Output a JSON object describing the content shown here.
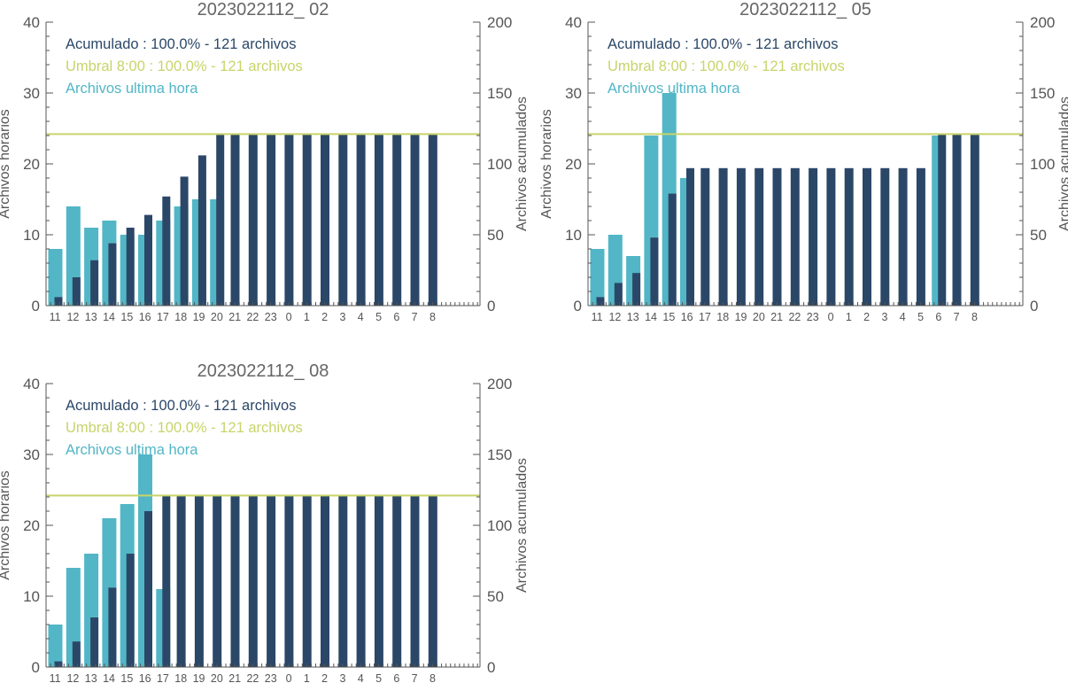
{
  "colors": {
    "axis": "#555555",
    "tick_text": "#555555",
    "title": "#666666",
    "hourly": "#52b6c6",
    "cumulative": "#2b4768",
    "threshold": "#c8d46a"
  },
  "chart_data": [
    {
      "type": "bar",
      "title": "2023022112_ 02",
      "xlabel": "",
      "ylabel": "Archivos horarios",
      "ylabel_right": "Archivos acumulados",
      "ylim": [
        0,
        40
      ],
      "ylim_right": [
        0,
        200
      ],
      "yticks": [
        0,
        10,
        20,
        30,
        40
      ],
      "yticks_right": [
        0,
        50,
        100,
        150,
        200
      ],
      "categories": [
        "11",
        "12",
        "13",
        "14",
        "15",
        "16",
        "17",
        "18",
        "19",
        "20",
        "21",
        "22",
        "23",
        "0",
        "1",
        "2",
        "3",
        "4",
        "5",
        "6",
        "7",
        "8"
      ],
      "grid": false,
      "legend_position": "top-left",
      "legend": [
        "Acumulado : 100.0% - 121 archivos",
        "Umbral 8:00 : 100.0% - 121 archivos",
        "Archivos ultima hora"
      ],
      "threshold": 121,
      "series": [
        {
          "name": "Archivos ultima hora",
          "axis": "left",
          "values": [
            8,
            14,
            11,
            12,
            10,
            10,
            12,
            14,
            15,
            15,
            0,
            0,
            0,
            0,
            0,
            0,
            0,
            0,
            0,
            0,
            0,
            0
          ]
        },
        {
          "name": "Acumulado",
          "axis": "right",
          "values": [
            6,
            20,
            32,
            44,
            55,
            64,
            77,
            91,
            106,
            121,
            121,
            121,
            121,
            121,
            121,
            121,
            121,
            121,
            121,
            121,
            121,
            121
          ]
        }
      ]
    },
    {
      "type": "bar",
      "title": "2023022112_ 05",
      "xlabel": "",
      "ylabel": "Archivos horarios",
      "ylabel_right": "Archivos acumulados",
      "ylim": [
        0,
        40
      ],
      "ylim_right": [
        0,
        200
      ],
      "yticks": [
        0,
        10,
        20,
        30,
        40
      ],
      "yticks_right": [
        0,
        50,
        100,
        150,
        200
      ],
      "categories": [
        "11",
        "12",
        "13",
        "14",
        "15",
        "16",
        "17",
        "18",
        "19",
        "20",
        "21",
        "22",
        "23",
        "0",
        "1",
        "2",
        "3",
        "4",
        "5",
        "6",
        "7",
        "8"
      ],
      "grid": false,
      "legend_position": "top-left",
      "legend": [
        "Acumulado : 100.0% - 121 archivos",
        "Umbral 8:00 : 100.0% - 121 archivos",
        "Archivos ultima hora"
      ],
      "threshold": 121,
      "series": [
        {
          "name": "Archivos ultima hora",
          "axis": "left",
          "values": [
            8,
            10,
            7,
            24,
            30,
            18,
            0,
            0,
            0,
            0,
            0,
            0,
            0,
            0,
            0,
            0,
            0,
            0,
            0,
            24,
            0,
            0
          ]
        },
        {
          "name": "Acumulado",
          "axis": "right",
          "values": [
            6,
            16,
            23,
            48,
            79,
            97,
            97,
            97,
            97,
            97,
            97,
            97,
            97,
            97,
            97,
            97,
            97,
            97,
            97,
            121,
            121,
            121
          ]
        }
      ]
    },
    {
      "type": "bar",
      "title": "2023022112_ 08",
      "xlabel": "",
      "ylabel": "Archivos horarios",
      "ylabel_right": "Archivos acumulados",
      "ylim": [
        0,
        40
      ],
      "ylim_right": [
        0,
        200
      ],
      "yticks": [
        0,
        10,
        20,
        30,
        40
      ],
      "yticks_right": [
        0,
        50,
        100,
        150,
        200
      ],
      "categories": [
        "11",
        "12",
        "13",
        "14",
        "15",
        "16",
        "17",
        "18",
        "19",
        "20",
        "21",
        "22",
        "23",
        "0",
        "1",
        "2",
        "3",
        "4",
        "5",
        "6",
        "7",
        "8"
      ],
      "grid": false,
      "legend_position": "top-left",
      "legend": [
        "Acumulado : 100.0% - 121 archivos",
        "Umbral 8:00 : 100.0% - 121 archivos",
        "Archivos ultima hora"
      ],
      "threshold": 121,
      "series": [
        {
          "name": "Archivos ultima hora",
          "axis": "left",
          "values": [
            6,
            14,
            16,
            21,
            23,
            30,
            11,
            0,
            0,
            0,
            0,
            0,
            0,
            0,
            0,
            0,
            0,
            0,
            0,
            0,
            0,
            0
          ]
        },
        {
          "name": "Acumulado",
          "axis": "right",
          "values": [
            4,
            18,
            35,
            56,
            80,
            110,
            121,
            121,
            121,
            121,
            121,
            121,
            121,
            121,
            121,
            121,
            121,
            121,
            121,
            121,
            121,
            121
          ]
        }
      ]
    }
  ]
}
